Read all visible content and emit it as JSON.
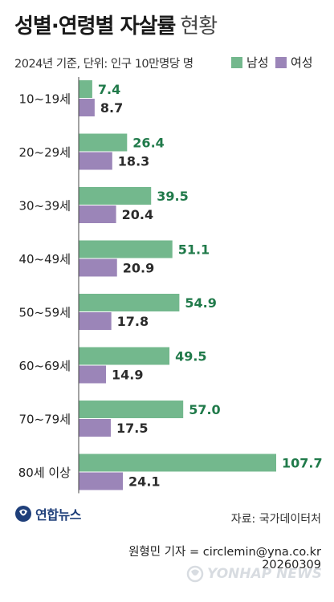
{
  "title": {
    "bold": "성별·연령별 자살률",
    "light": "현황"
  },
  "subtitle": "2024년 기준, 단위: 인구 10만명당 명",
  "colors": {
    "male": "#73b88d",
    "female": "#9b85b8",
    "male_label": "#207a4a",
    "female_label": "#2b2b2b",
    "axis": "#444444"
  },
  "legend": {
    "male": "남성",
    "female": "여성"
  },
  "chart_data": {
    "type": "bar",
    "orientation": "horizontal",
    "categories": [
      "10~19세",
      "20~29세",
      "30~39세",
      "40~49세",
      "50~59세",
      "60~69세",
      "70~79세",
      "80세 이상"
    ],
    "series": [
      {
        "name": "남성",
        "values": [
          7.4,
          26.4,
          39.5,
          51.1,
          54.9,
          49.5,
          57.0,
          107.7
        ]
      },
      {
        "name": "여성",
        "values": [
          8.7,
          18.3,
          20.4,
          20.9,
          17.8,
          14.9,
          17.5,
          24.1
        ]
      }
    ],
    "value_labels": {
      "남성": [
        "7.4",
        "26.4",
        "39.5",
        "51.1",
        "54.9",
        "49.5",
        "57.0",
        "107.7"
      ],
      "여성": [
        "8.7",
        "18.3",
        "20.4",
        "20.9",
        "17.8",
        "14.9",
        "17.5",
        "24.1"
      ]
    },
    "xlim": [
      0,
      107.7
    ],
    "legend_position": "top-right",
    "grid": false
  },
  "footer": {
    "logo": "연합뉴스",
    "source": "자료: 국가데이터처",
    "credit": "원형민 기자 = circlemin@yna.co.kr",
    "date": "20260309",
    "watermark": "YONHAP NEWS"
  }
}
